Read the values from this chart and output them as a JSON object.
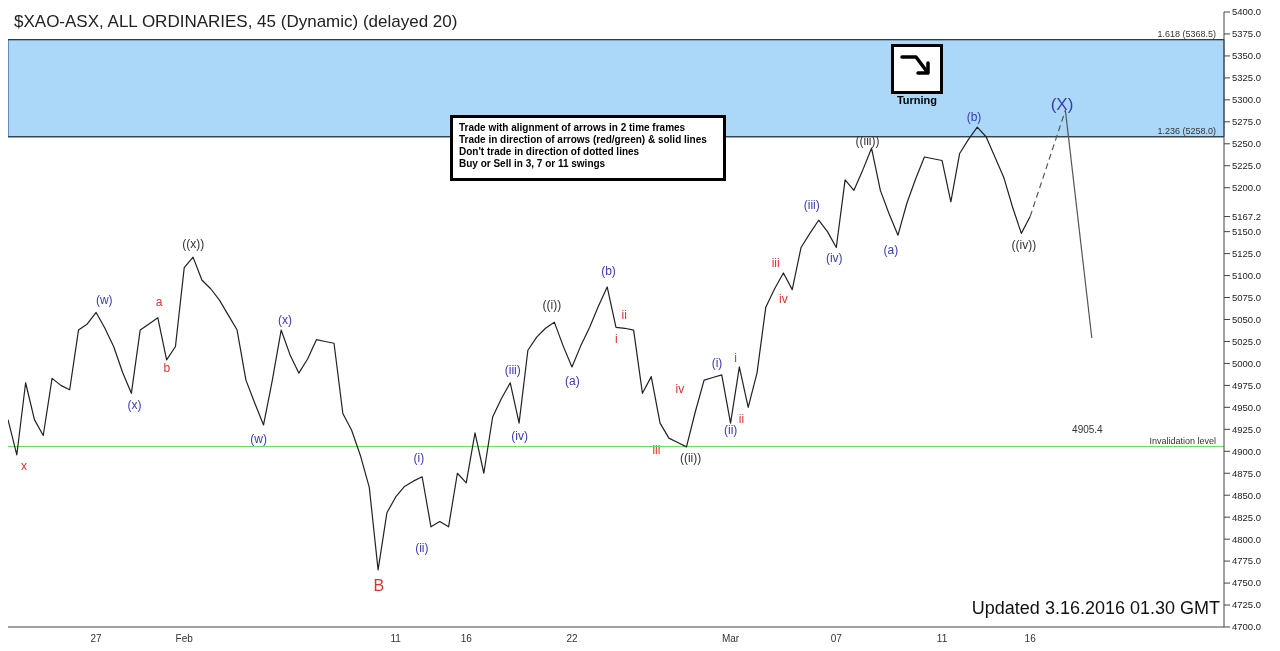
{
  "chart_data": {
    "type": "line",
    "title": "$XAO-ASX, ALL ORDINARIES, 45 (Dynamic) (delayed 20)",
    "categories": [
      null,
      null,
      null,
      null,
      null,
      null,
      null,
      null,
      null,
      null,
      "27",
      null,
      null,
      null,
      null,
      null,
      null,
      null,
      null,
      null,
      "Feb",
      null,
      null,
      null,
      null,
      null,
      null,
      null,
      null,
      null,
      null,
      null,
      null,
      null,
      null,
      null,
      null,
      null,
      null,
      null,
      null,
      null,
      null,
      null,
      "11",
      null,
      null,
      null,
      null,
      null,
      null,
      null,
      "16",
      null,
      null,
      null,
      null,
      null,
      null,
      null,
      null,
      null,
      null,
      null,
      "22",
      null,
      null,
      null,
      null,
      null,
      null,
      null,
      null,
      null,
      null,
      null,
      null,
      null,
      null,
      null,
      null,
      null,
      "Mar",
      null,
      null,
      null,
      null,
      null,
      null,
      null,
      null,
      null,
      null,
      null,
      "07",
      null,
      null,
      null,
      null,
      null,
      null,
      null,
      null,
      null,
      null,
      null,
      "11",
      null,
      null,
      null,
      null,
      null,
      null,
      null,
      null,
      null,
      "16",
      null,
      null,
      null,
      null,
      null,
      null,
      null,
      null,
      null,
      null,
      null,
      null,
      null,
      null,
      null,
      null,
      null,
      null,
      null,
      null,
      null,
      null
    ],
    "ylim": [
      4700,
      5400
    ],
    "yticks": [
      {
        "value": 4700,
        "label": "4700.0"
      },
      {
        "value": 4725,
        "label": "4725.0"
      },
      {
        "value": 4750,
        "label": "4750.0"
      },
      {
        "value": 4775,
        "label": "4775.0"
      },
      {
        "value": 4800,
        "label": "4800.0"
      },
      {
        "value": 4825,
        "label": "4825.0"
      },
      {
        "value": 4850,
        "label": "4850.0"
      },
      {
        "value": 4875,
        "label": "4875.0"
      },
      {
        "value": 4900,
        "label": "4900.0"
      },
      {
        "value": 4925,
        "label": "4925.0"
      },
      {
        "value": 4950,
        "label": "4950.0"
      },
      {
        "value": 4975,
        "label": "4975.0"
      },
      {
        "value": 5000,
        "label": "5000.0"
      },
      {
        "value": 5025,
        "label": "5025.0"
      },
      {
        "value": 5050,
        "label": "5050.0"
      },
      {
        "value": 5075,
        "label": "5075.0"
      },
      {
        "value": 5100,
        "label": "5100.0"
      },
      {
        "value": 5125,
        "label": "5125.0"
      },
      {
        "value": 5150,
        "label": "5150.0"
      },
      {
        "value": 5167.2,
        "label": "5167.2"
      },
      {
        "value": 5200,
        "label": "5200.0"
      },
      {
        "value": 5225,
        "label": "5225.0"
      },
      {
        "value": 5250,
        "label": "5250.0"
      },
      {
        "value": 5275,
        "label": "5275.0"
      },
      {
        "value": 5300,
        "label": "5300.0"
      },
      {
        "value": 5325,
        "label": "5325.0"
      },
      {
        "value": 5350,
        "label": "5350.0"
      },
      {
        "value": 5375,
        "label": "5375.0"
      },
      {
        "value": 5400,
        "label": "5400.0"
      }
    ],
    "marker": "none",
    "line_style": "solid",
    "series": [
      {
        "color": "#222222",
        "values": [
          4936,
          4896,
          4978,
          4936,
          4918,
          4983,
          4975,
          4970,
          5038,
          5045,
          5058,
          5040,
          5019,
          4990,
          4966,
          5038,
          5045,
          5052,
          5004,
          5019,
          5109,
          5121,
          5095,
          5085,
          5072,
          5055,
          5038,
          4981,
          4955,
          4930,
          4981,
          5038,
          5010,
          4989,
          5005,
          5027,
          5025,
          5023,
          4943,
          4924,
          4895,
          4859,
          4765,
          4830,
          4848,
          4860,
          4866,
          4871,
          4814,
          4820,
          4814,
          4875,
          4864,
          4921,
          4875,
          4939,
          4960,
          4978,
          4932,
          5015,
          5030,
          5040,
          5047,
          5020,
          4996,
          5020,
          5041,
          5065,
          5087,
          5041,
          5040,
          5038,
          4966,
          4985,
          4932,
          4915,
          4910,
          4905,
          4945,
          4981,
          4984,
          4987,
          4932,
          4996,
          4950,
          4989,
          5064,
          5085,
          5103,
          5084,
          5132,
          5148,
          5163,
          5150,
          5132,
          5209,
          5197,
          5220,
          5245,
          5197,
          5170,
          5146,
          5182,
          5210,
          5235,
          5233,
          5231,
          5184,
          5239,
          5255,
          5269,
          5258,
          5235,
          5212,
          5178,
          5148,
          5167.2,
          null,
          null,
          null,
          null,
          null,
          null,
          null,
          null,
          null,
          null,
          null,
          null,
          null,
          null,
          null,
          null,
          null,
          null,
          null,
          null,
          null,
          null
        ]
      },
      {
        "type": "line",
        "line_style": "dashed",
        "color": "#555555",
        "values": [
          null,
          null,
          null,
          null,
          null,
          null,
          null,
          null,
          null,
          null,
          null,
          null,
          null,
          null,
          null,
          null,
          null,
          null,
          null,
          null,
          null,
          null,
          null,
          null,
          null,
          null,
          null,
          null,
          null,
          null,
          null,
          null,
          null,
          null,
          null,
          null,
          null,
          null,
          null,
          null,
          null,
          null,
          null,
          null,
          null,
          null,
          null,
          null,
          null,
          null,
          null,
          null,
          null,
          null,
          null,
          null,
          null,
          null,
          null,
          null,
          null,
          null,
          null,
          null,
          null,
          null,
          null,
          null,
          null,
          null,
          null,
          null,
          null,
          null,
          null,
          null,
          null,
          null,
          null,
          null,
          null,
          null,
          null,
          null,
          null,
          null,
          null,
          null,
          null,
          null,
          null,
          null,
          null,
          null,
          null,
          null,
          null,
          null,
          null,
          null,
          null,
          null,
          null,
          null,
          null,
          null,
          null,
          null,
          null,
          null,
          null,
          null,
          null,
          null,
          null,
          null,
          5167.2,
          null,
          null,
          null,
          5288,
          null,
          null,
          null,
          null,
          null,
          null,
          null,
          null,
          null,
          null,
          null,
          null,
          null,
          null,
          null,
          null,
          null,
          null
        ]
      },
      {
        "type": "line",
        "line_style": "solid",
        "color": "#555555",
        "values": [
          null,
          null,
          null,
          null,
          null,
          null,
          null,
          null,
          null,
          null,
          null,
          null,
          null,
          null,
          null,
          null,
          null,
          null,
          null,
          null,
          null,
          null,
          null,
          null,
          null,
          null,
          null,
          null,
          null,
          null,
          null,
          null,
          null,
          null,
          null,
          null,
          null,
          null,
          null,
          null,
          null,
          null,
          null,
          null,
          null,
          null,
          null,
          null,
          null,
          null,
          null,
          null,
          null,
          null,
          null,
          null,
          null,
          null,
          null,
          null,
          null,
          null,
          null,
          null,
          null,
          null,
          null,
          null,
          null,
          null,
          null,
          null,
          null,
          null,
          null,
          null,
          null,
          null,
          null,
          null,
          null,
          null,
          null,
          null,
          null,
          null,
          null,
          null,
          null,
          null,
          null,
          null,
          null,
          null,
          null,
          null,
          null,
          null,
          null,
          null,
          null,
          null,
          null,
          null,
          null,
          null,
          null,
          null,
          null,
          null,
          null,
          null,
          null,
          null,
          null,
          null,
          null,
          null,
          null,
          null,
          5288,
          null,
          null,
          5029,
          null,
          null,
          null,
          null,
          null,
          null,
          null,
          null,
          null,
          null,
          null,
          null,
          null,
          null,
          null
        ]
      }
    ],
    "ref_lines": [
      {
        "axis": "y",
        "value": 4905.4,
        "label": "Invalidation level",
        "color": "#66dd66"
      },
      {
        "axis": "y",
        "value": 5258,
        "label": "1.236 (5258.0)",
        "color": "#333333"
      },
      {
        "axis": "y",
        "value": 5368.5,
        "label": "1.618 (5368.5)",
        "color": "#333333"
      }
    ],
    "bands": [
      {
        "axis": "y",
        "from": 5258,
        "to": 5368.5,
        "color": "#8fcaf5"
      }
    ],
    "annotations": [
      "Trade with alignment of arrows in 2 time frames",
      "Trade in direction of arrows (red/green) & solid lines",
      "Don't trade in direction of dotted lines",
      "Buy or Sell in 3, 7 or 11 swings",
      "Turning",
      "Updated 3.16.2016 01.30 GMT",
      "4905.4",
      "x",
      "(w)",
      "(x)",
      "a",
      "b",
      "((x))",
      "(w)",
      "(x)",
      "B",
      "(i)",
      "(ii)",
      "(iii)",
      "(iv)",
      "((i))",
      "(a)",
      "(b)",
      "i",
      "ii",
      "iii",
      "iv",
      "((ii))",
      "(i)",
      "(ii)",
      "i",
      "ii",
      "iii",
      "iv",
      "(iii)",
      "(iv)",
      "((iii))",
      "(a)",
      "(b)",
      "((iv))",
      "(X)"
    ]
  }
}
